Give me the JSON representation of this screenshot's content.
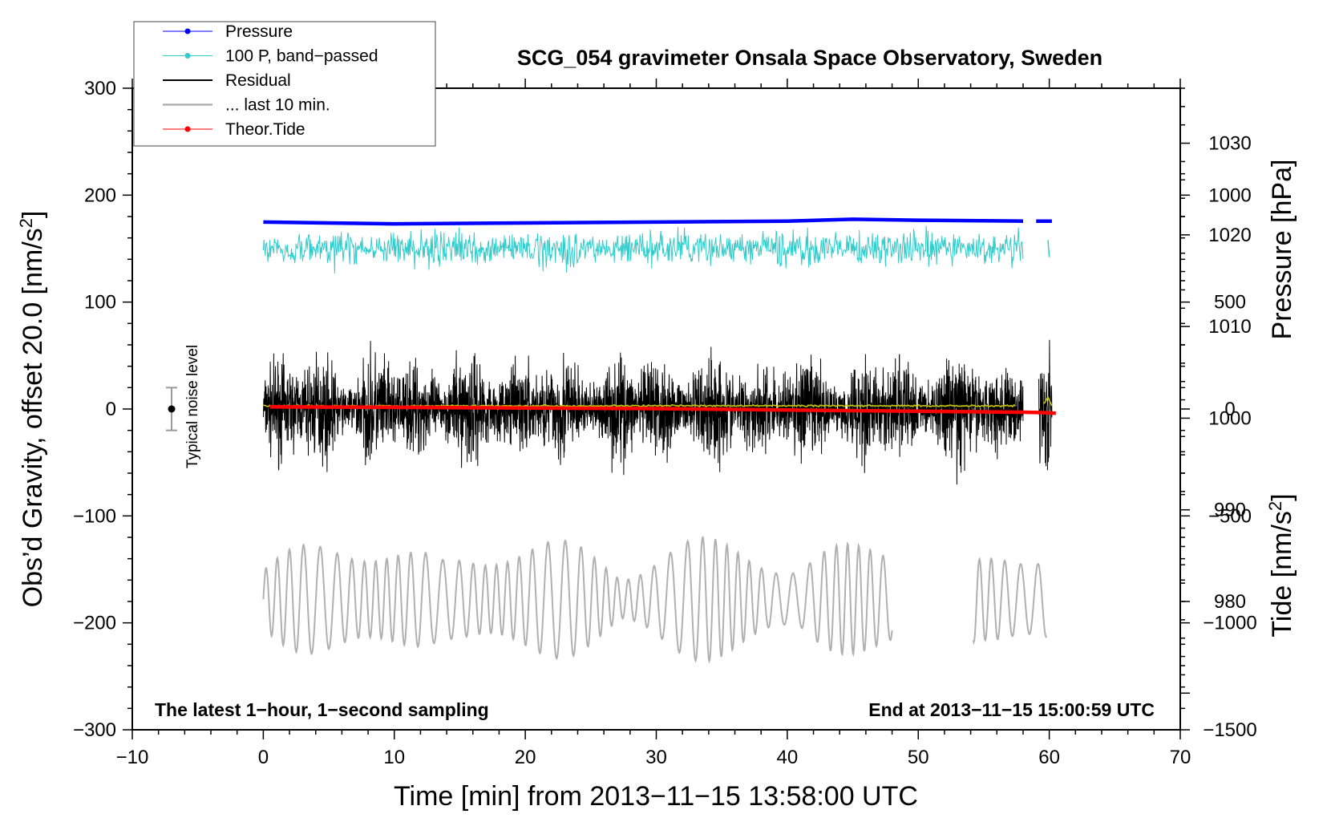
{
  "chart_data": {
    "type": "line",
    "title": "SCG_054 gravimeter Onsala Space Observatory, Sweden",
    "xlabel": "Time [min] from 2013−11−15 13:58:00 UTC",
    "ylabel_left_main": "Obs’d Gravity, offset 20.0 [nm/s",
    "ylabel_left_sup": "2",
    "ylabel_left_end": "]",
    "ylabel_right_pressure": "Pressure [hPa]",
    "ylabel_right_tide_main": "Tide [nm/s",
    "ylabel_right_tide_sup": "2",
    "ylabel_right_tide_end": "]",
    "xlim": [
      -10,
      70
    ],
    "ylim": [
      -300,
      300
    ],
    "x_ticks": [
      "−10",
      "0",
      "10",
      "20",
      "30",
      "40",
      "50",
      "60",
      "70"
    ],
    "y_ticks_left": [
      "−300",
      "−200",
      "−100",
      "0",
      "100",
      "200",
      "300"
    ],
    "pressure_axis": {
      "range": [
        966,
        1036
      ],
      "ticks": [
        "980",
        "990",
        "1000",
        "1010",
        "1020",
        "1030"
      ]
    },
    "tide_axis": {
      "range": [
        -1500,
        1500
      ],
      "ticks": [
        "−1500",
        "−1000",
        "−500",
        "0",
        "500",
        "1000"
      ]
    },
    "note_left": "The latest 1−hour, 1−second sampling",
    "note_right": "End at 2013−11−15 15:00:59 UTC",
    "noise_bar": {
      "label": "Typical noise level",
      "x": -7,
      "center": 0,
      "half_range": 20
    },
    "legend": [
      {
        "label": "Pressure",
        "color": "#0000ff",
        "marker": true
      },
      {
        "label": "100 P, band−passed",
        "color": "#33cccc",
        "marker": true
      },
      {
        "label": "Residual",
        "color": "#000000",
        "marker": false
      },
      {
        "label": "... last 10 min.",
        "color": "#b0b0b0",
        "marker": false
      },
      {
        "label": "Theor.Tide",
        "color": "#ff0000",
        "marker": true
      }
    ],
    "series": [
      {
        "name": "Pressure",
        "axis": "pressure",
        "color": "#0000ff",
        "x": [
          0,
          10,
          20,
          30,
          40,
          45,
          50,
          58,
          59,
          60.2
        ],
        "y": [
          1021.4,
          1021.2,
          1021.3,
          1021.4,
          1021.5,
          1021.7,
          1021.6,
          1021.5,
          1021.5,
          1021.5
        ],
        "gap_after": 58
      },
      {
        "name": "100 P, band−passed",
        "axis": "left",
        "color": "#33cccc",
        "x_range": [
          0,
          58
        ],
        "center": 150,
        "amplitude": 18,
        "tail": {
          "x": [
            59.9,
            60.0
          ],
          "y": [
            158,
            142
          ]
        }
      },
      {
        "name": "Residual",
        "axis": "left",
        "color": "#000000",
        "x_range": [
          0,
          58
        ],
        "center": 0,
        "amplitude": 55,
        "tail_range": [
          59.2,
          60.2
        ]
      },
      {
        "name": "Residual smoothed",
        "axis": "left",
        "color": "#cccc00",
        "x_range": [
          0,
          57.5
        ],
        "value": 3
      },
      {
        "name": "... last 10 min.",
        "axis": "left",
        "color": "#b0b0b0",
        "x_range": [
          0,
          48
        ],
        "center": -178,
        "amplitude": 45,
        "second_range": [
          54.2,
          59.8
        ]
      },
      {
        "name": "Theor.Tide",
        "axis": "tide",
        "color": "#ff0000",
        "x": [
          0.5,
          10,
          20,
          30,
          40,
          50,
          58,
          59.5,
          60.5
        ],
        "y": [
          10,
          8,
          5,
          2,
          -5,
          -10,
          -15,
          -17,
          -20
        ]
      }
    ]
  }
}
